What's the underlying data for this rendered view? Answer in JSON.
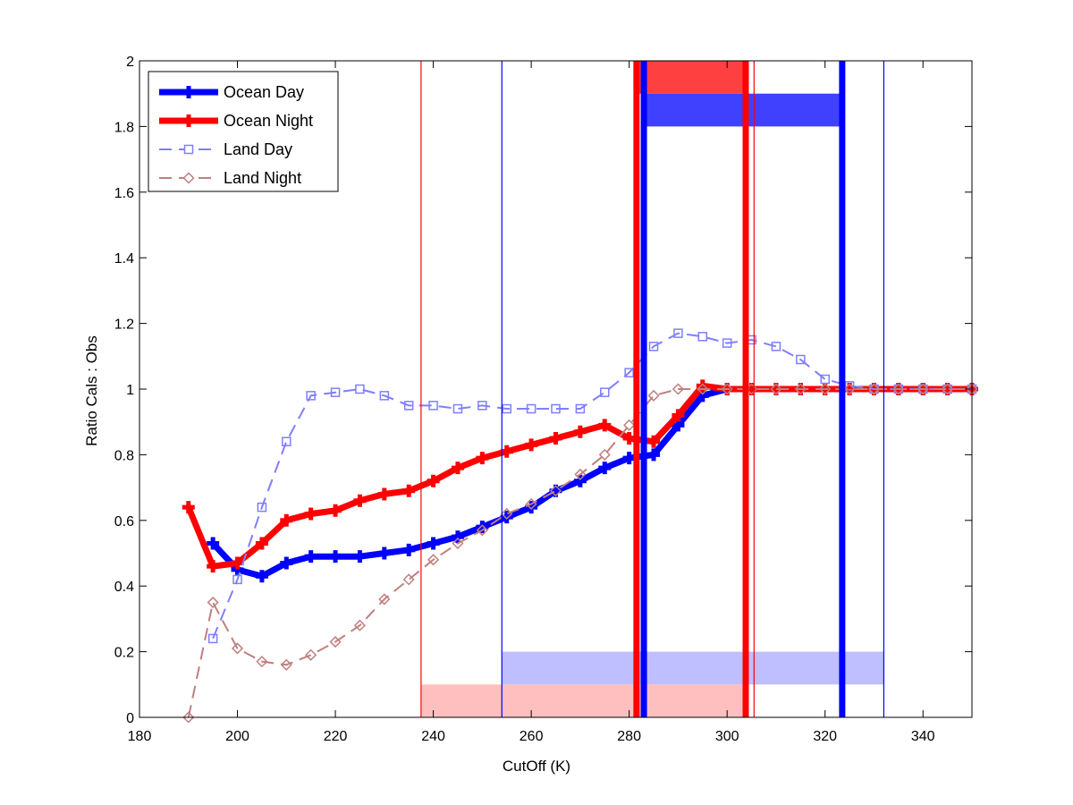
{
  "chart_data": {
    "type": "line",
    "title": "",
    "xlabel": "CutOff (K)",
    "ylabel": "Ratio Cals : Obs",
    "xlim": [
      180,
      350
    ],
    "ylim": [
      0,
      2
    ],
    "xticks": [
      180,
      200,
      220,
      240,
      260,
      280,
      300,
      320,
      340
    ],
    "yticks": [
      0,
      0.2,
      0.4,
      0.6,
      0.8,
      1,
      1.2,
      1.4,
      1.6,
      1.8,
      2
    ],
    "xtick_labels": [
      "180",
      "200",
      "220",
      "240",
      "260",
      "280",
      "300",
      "320",
      "340"
    ],
    "ytick_labels": [
      "0",
      "0.2",
      "0.4",
      "0.6",
      "0.8",
      "1",
      "1.2",
      "1.4",
      "1.6",
      "1.8",
      "2"
    ],
    "grid": false,
    "legend_position": "top-left",
    "series": [
      {
        "name": "Ocean Day",
        "color": "#0000ff",
        "style": "thick-solid",
        "marker": "plus",
        "x": [
          195,
          200,
          205,
          210,
          215,
          220,
          225,
          230,
          235,
          240,
          245,
          250,
          255,
          260,
          265,
          270,
          275,
          280,
          285,
          290,
          295,
          300,
          305,
          310,
          315,
          320,
          325,
          330,
          335,
          340,
          345,
          350
        ],
        "values": [
          0.53,
          0.45,
          0.43,
          0.47,
          0.49,
          0.49,
          0.49,
          0.5,
          0.51,
          0.53,
          0.55,
          0.58,
          0.61,
          0.64,
          0.69,
          0.72,
          0.76,
          0.79,
          0.8,
          0.89,
          0.98,
          1.0,
          1.0,
          1.0,
          1.0,
          1.0,
          1.0,
          1.0,
          1.0,
          1.0,
          1.0,
          1.0
        ]
      },
      {
        "name": "Ocean Night",
        "color": "#ff0000",
        "style": "thick-solid",
        "marker": "plus",
        "x": [
          190,
          195,
          200,
          205,
          210,
          215,
          220,
          225,
          230,
          235,
          240,
          245,
          250,
          255,
          260,
          265,
          270,
          275,
          280,
          285,
          290,
          295,
          300,
          305,
          310,
          315,
          320,
          325,
          330,
          335,
          340,
          345,
          350
        ],
        "values": [
          0.64,
          0.46,
          0.47,
          0.53,
          0.6,
          0.62,
          0.63,
          0.66,
          0.68,
          0.69,
          0.72,
          0.76,
          0.79,
          0.81,
          0.83,
          0.85,
          0.87,
          0.89,
          0.85,
          0.84,
          0.92,
          1.01,
          1.0,
          1.0,
          1.0,
          1.0,
          1.0,
          1.0,
          1.0,
          1.0,
          1.0,
          1.0,
          1.0
        ]
      },
      {
        "name": "Land Day",
        "color": "#7f7fff",
        "style": "dashed",
        "marker": "square",
        "x": [
          195,
          200,
          205,
          210,
          215,
          220,
          225,
          230,
          235,
          240,
          245,
          250,
          255,
          260,
          265,
          270,
          275,
          280,
          285,
          290,
          295,
          300,
          305,
          310,
          315,
          320,
          325,
          330,
          335,
          340,
          345,
          350
        ],
        "values": [
          0.24,
          0.42,
          0.64,
          0.84,
          0.98,
          0.99,
          1.0,
          0.98,
          0.95,
          0.95,
          0.94,
          0.95,
          0.94,
          0.94,
          0.94,
          0.94,
          0.99,
          1.05,
          1.13,
          1.17,
          1.16,
          1.14,
          1.15,
          1.13,
          1.09,
          1.03,
          1.01,
          1.0,
          1.0,
          1.0,
          1.0,
          1.0
        ]
      },
      {
        "name": "Land Night",
        "color": "#bf7f7f",
        "style": "dashed",
        "marker": "diamond",
        "x": [
          190,
          195,
          200,
          205,
          210,
          215,
          220,
          225,
          230,
          235,
          240,
          245,
          250,
          255,
          260,
          265,
          270,
          275,
          280,
          285,
          290,
          295,
          300,
          305,
          310,
          315,
          320,
          325,
          330,
          335,
          340,
          345,
          350
        ],
        "values": [
          0.0,
          0.35,
          0.21,
          0.17,
          0.16,
          0.19,
          0.23,
          0.28,
          0.36,
          0.42,
          0.48,
          0.53,
          0.57,
          0.62,
          0.65,
          0.69,
          0.74,
          0.8,
          0.89,
          0.98,
          1.0,
          1.0,
          1.0,
          1.0,
          1.0,
          1.0,
          1.0,
          1.0,
          1.0,
          1.0,
          1.0,
          1.0,
          1.0
        ]
      }
    ],
    "vertical_lines": [
      {
        "x": 237.5,
        "color": "#ff0000",
        "weight": "thin"
      },
      {
        "x": 254,
        "color": "#0000ff",
        "weight": "thin"
      },
      {
        "x": 281.5,
        "color": "#ff0000",
        "weight": "thick"
      },
      {
        "x": 283,
        "color": "#0000ff",
        "weight": "thick"
      },
      {
        "x": 303.8,
        "color": "#ff0000",
        "weight": "thick"
      },
      {
        "x": 305.5,
        "color": "#ff0000",
        "weight": "thin"
      },
      {
        "x": 323.5,
        "color": "#0000ff",
        "weight": "thick"
      },
      {
        "x": 332,
        "color": "#0000ff",
        "weight": "thin"
      }
    ],
    "bands": [
      {
        "x0": 237.5,
        "x1": 303.8,
        "y0": 0,
        "y1": 0.1,
        "color": "#ffbfbf"
      },
      {
        "x0": 254,
        "x1": 332,
        "y0": 0.1,
        "y1": 0.2,
        "color": "#bfbfff"
      },
      {
        "x0": 281.5,
        "x1": 303.8,
        "y0": 1.9,
        "y1": 2.0,
        "color": "#ff4040"
      },
      {
        "x0": 283,
        "x1": 323.5,
        "y0": 1.8,
        "y1": 1.9,
        "color": "#4040ff"
      }
    ]
  }
}
